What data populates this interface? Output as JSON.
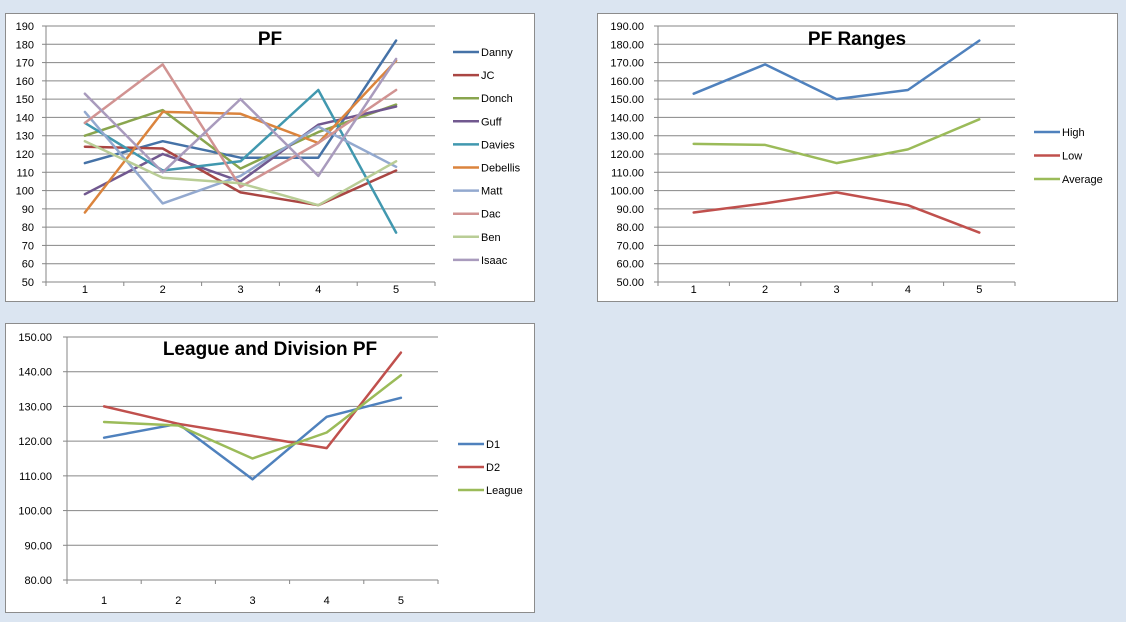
{
  "background_color": "#dbe5f1",
  "chart_data": [
    {
      "id": "pf",
      "type": "line",
      "title": "PF",
      "categories": [
        "1",
        "2",
        "3",
        "4",
        "5"
      ],
      "y_ticks": [
        "190",
        "180",
        "170",
        "160",
        "150",
        "140",
        "130",
        "120",
        "110",
        "100",
        "90",
        "80",
        "70",
        "60",
        "50"
      ],
      "ylim": [
        50,
        190
      ],
      "grid": true,
      "legend_position": "right",
      "series": [
        {
          "name": "Danny",
          "color": "#4572a7",
          "values": [
            115,
            127,
            118,
            118,
            182
          ]
        },
        {
          "name": "JC",
          "color": "#aa4643",
          "values": [
            124,
            123,
            99,
            92,
            111
          ]
        },
        {
          "name": "Donch",
          "color": "#89a54e",
          "values": [
            130,
            144,
            112,
            132,
            147
          ]
        },
        {
          "name": "Guff",
          "color": "#71588f",
          "values": [
            98,
            120,
            105,
            136,
            146
          ]
        },
        {
          "name": "Davies",
          "color": "#4198af",
          "values": [
            137,
            111,
            116,
            155,
            77
          ]
        },
        {
          "name": "Debellis",
          "color": "#db843d",
          "values": [
            88,
            143,
            142,
            126,
            171
          ]
        },
        {
          "name": "Matt",
          "color": "#93a9cf",
          "values": [
            143,
            93,
            108,
            135,
            113
          ]
        },
        {
          "name": "Dac",
          "color": "#d19392",
          "values": [
            137,
            169,
            102,
            126,
            155
          ]
        },
        {
          "name": "Ben",
          "color": "#b9cd96",
          "values": [
            127,
            107,
            104,
            92,
            116
          ]
        },
        {
          "name": "Isaac",
          "color": "#a99bbd",
          "values": [
            153,
            110,
            150,
            108,
            172
          ]
        }
      ]
    },
    {
      "id": "ranges",
      "type": "line",
      "title": "PF Ranges",
      "categories": [
        "1",
        "2",
        "3",
        "4",
        "5"
      ],
      "y_ticks": [
        "190.00",
        "180.00",
        "170.00",
        "160.00",
        "150.00",
        "140.00",
        "130.00",
        "120.00",
        "110.00",
        "100.00",
        "90.00",
        "80.00",
        "70.00",
        "60.00",
        "50.00"
      ],
      "ylim": [
        50,
        190
      ],
      "grid": true,
      "legend_position": "right",
      "series": [
        {
          "name": "High",
          "color": "#4f81bd",
          "values": [
            153,
            169,
            150,
            155,
            182
          ]
        },
        {
          "name": "Low",
          "color": "#c0504d",
          "values": [
            88,
            93,
            99,
            92,
            77
          ]
        },
        {
          "name": "Average",
          "color": "#9bbb59",
          "values": [
            125.5,
            125,
            115,
            122.5,
            139
          ]
        }
      ]
    },
    {
      "id": "league",
      "type": "line",
      "title": "League and Division PF",
      "categories": [
        "1",
        "2",
        "3",
        "4",
        "5"
      ],
      "y_ticks": [
        "150.00",
        "140.00",
        "130.00",
        "120.00",
        "110.00",
        "100.00",
        "90.00",
        "80.00"
      ],
      "ylim": [
        80,
        150
      ],
      "grid": true,
      "legend_position": "right",
      "series": [
        {
          "name": "D1",
          "color": "#4f81bd",
          "values": [
            121,
            125,
            109,
            127,
            132.5
          ]
        },
        {
          "name": "D2",
          "color": "#c0504d",
          "values": [
            130,
            125,
            121.5,
            118,
            145.5
          ]
        },
        {
          "name": "League",
          "color": "#9bbb59",
          "values": [
            125.5,
            124.5,
            115,
            122.5,
            139
          ]
        }
      ]
    }
  ]
}
